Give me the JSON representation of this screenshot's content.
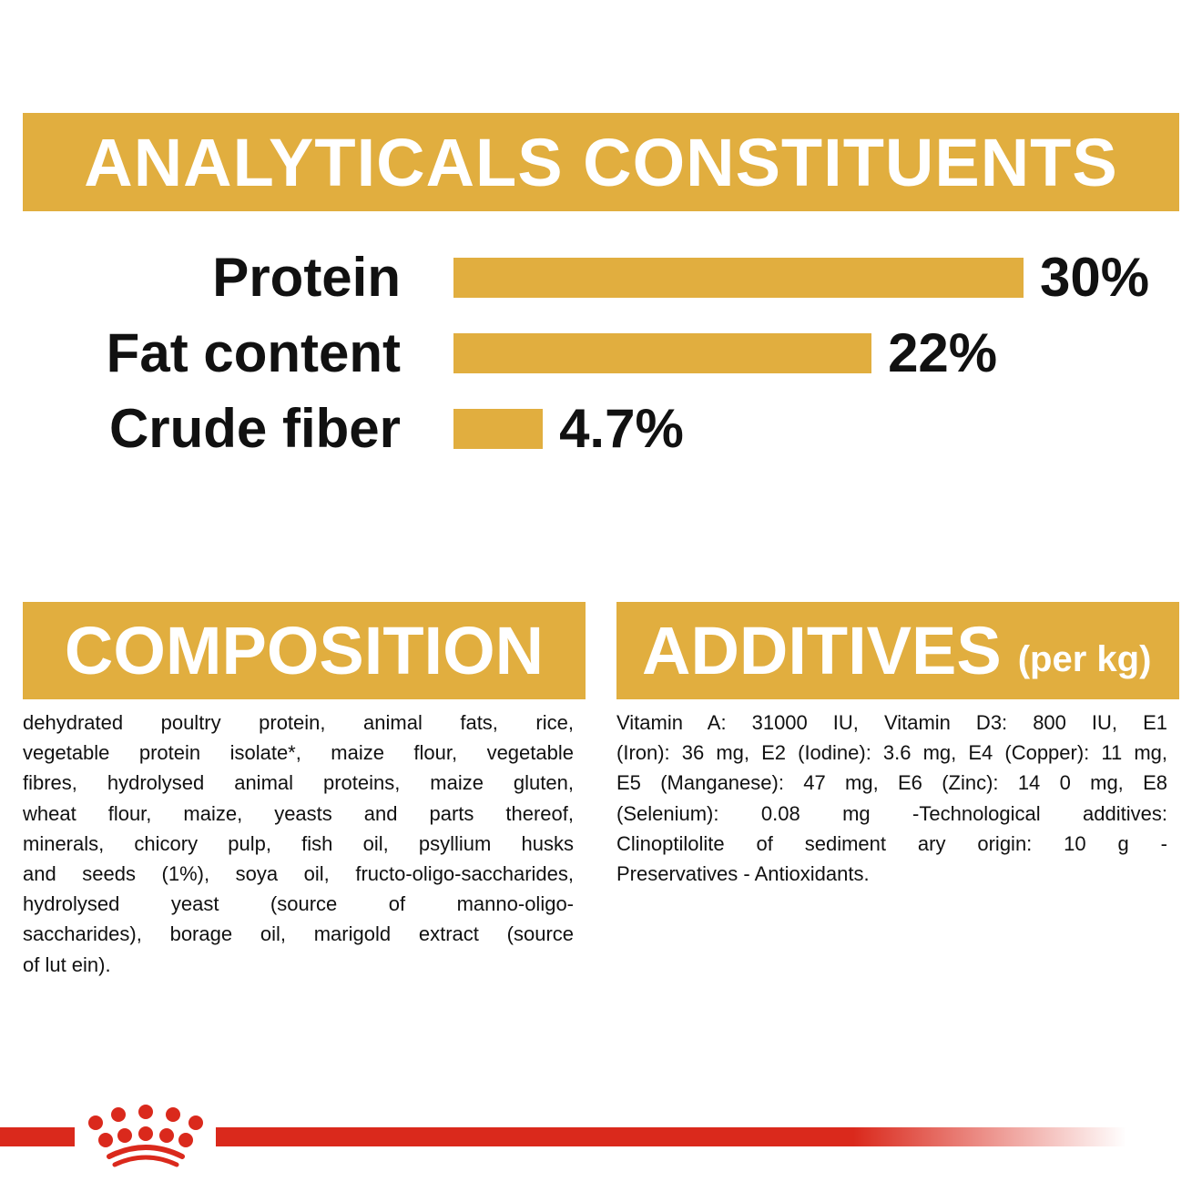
{
  "header": {
    "title": "ANALYTICALS CONSTITUENTS"
  },
  "constituents": [
    {
      "label": "Protein",
      "value": 30,
      "display": "30%"
    },
    {
      "label": "Fat content",
      "value": 22,
      "display": "22%"
    },
    {
      "label": "Crude fiber",
      "value": 4.7,
      "display": "4.7%"
    }
  ],
  "composition": {
    "title": "COMPOSITION",
    "lines": [
      "dehydrated poultry protein, animal fats, rice,",
      "vegetable protein isolate*, maize flour, vegetable",
      "fibres, hydrolysed animal proteins, maize gluten,",
      "wheat flour, maize, yeasts and parts thereof,",
      "minerals, chicory pulp, fish oil, psyllium husks",
      "and seeds (1%), soya oil, fructo-oligo-saccharides,",
      "hydrolysed yeast (source of manno-oligo-",
      "saccharides), borage oil, marigold extract (source",
      "of lut ein)."
    ]
  },
  "additives": {
    "title": "ADDITIVES",
    "subtitle": "(per kg)",
    "lines": [
      "Vitamin A: 31000 IU, Vitamin D3: 800 IU, E1",
      "(Iron): 36 mg, E2 (Iodine): 3.6 mg, E4 (Copper): 11 mg,",
      "E5 (Manganese): 47 mg, E6 (Zinc): 14 0 mg, E8",
      "(Selenium): 0.08 mg -Technological additives:",
      "Clinoptilolite of sediment ary origin: 10 g -",
      "Preservatives - Antioxidants."
    ]
  },
  "colors": {
    "accent": "#E1AE3F",
    "brand_red": "#DA291C"
  },
  "logo": {
    "icon": "crown-logo-icon"
  }
}
